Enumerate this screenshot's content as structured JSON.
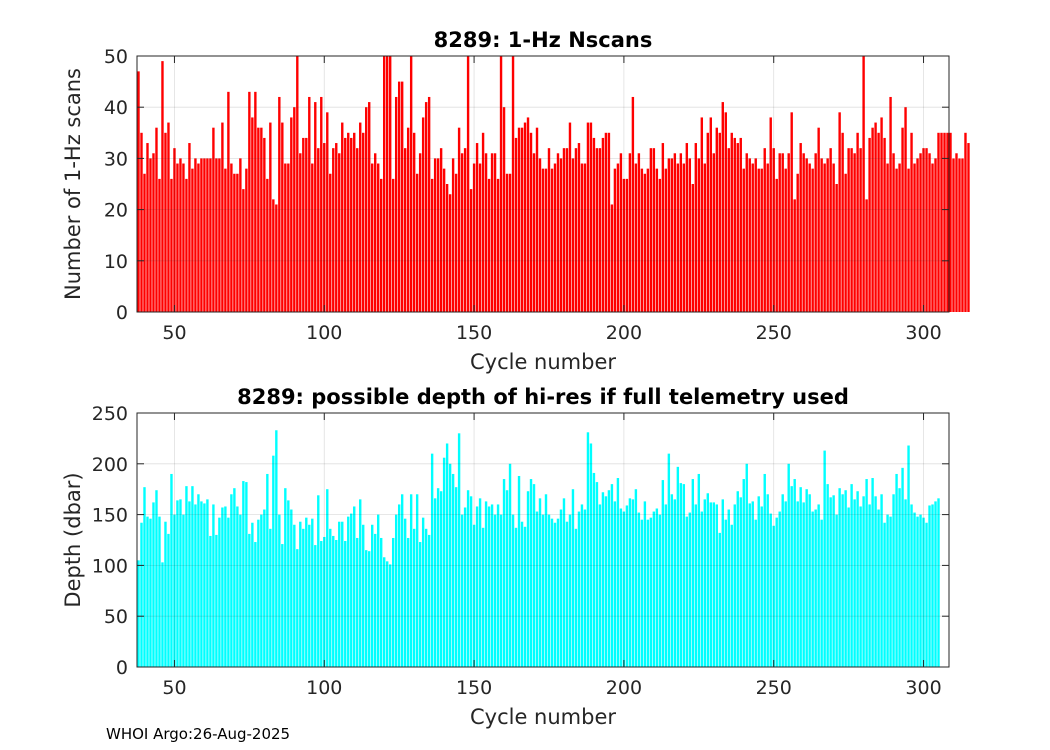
{
  "footer": "WHOI Argo:26-Aug-2025",
  "chart_data": [
    {
      "type": "bar",
      "title": "8289: 1-Hz Nscans",
      "xlabel": "Cycle number",
      "ylabel": "Number of 1-Hz scans",
      "xlim": [
        37.5,
        308.5
      ],
      "ylim": [
        0,
        50
      ],
      "xticks": [
        50,
        100,
        150,
        200,
        250,
        300
      ],
      "yticks": [
        0,
        10,
        20,
        30,
        40,
        50
      ],
      "grid": true,
      "color": "#ff0000",
      "x_start": 38,
      "values": [
        47,
        35,
        27,
        33,
        30,
        31,
        36,
        26,
        49,
        35,
        37,
        26,
        32,
        29,
        30,
        29,
        26,
        33,
        28,
        30,
        29,
        30,
        30,
        30,
        30,
        36,
        30,
        30,
        37,
        28,
        43,
        29,
        27,
        27,
        30,
        24,
        28,
        43,
        38,
        43,
        36,
        36,
        34,
        26,
        37,
        22,
        21,
        42,
        37,
        29,
        29,
        38,
        40,
        50,
        31,
        34,
        34,
        42,
        29,
        41,
        32,
        42,
        33,
        39,
        27,
        32,
        33,
        31,
        37,
        34,
        35,
        34,
        35,
        32,
        37,
        35,
        40,
        41,
        29,
        31,
        29,
        26,
        50,
        50,
        50,
        26,
        42,
        45,
        45,
        32,
        36,
        50,
        35,
        27,
        31,
        38,
        41,
        42,
        26,
        30,
        30,
        32,
        28,
        25,
        23,
        30,
        27,
        36,
        31,
        32,
        50,
        24,
        29,
        33,
        29,
        35,
        31,
        26,
        31,
        31,
        26,
        50,
        40,
        27,
        27,
        50,
        34,
        36,
        36,
        37,
        38,
        35,
        31,
        36,
        30,
        28,
        28,
        32,
        28,
        29,
        31,
        30,
        32,
        32,
        37,
        30,
        32,
        33,
        29,
        29,
        37,
        37,
        34,
        32,
        32,
        34,
        35,
        35,
        21,
        28,
        29,
        31,
        26,
        26,
        31,
        42,
        29,
        31,
        28,
        27,
        28,
        32,
        32,
        28,
        26,
        33,
        28,
        30,
        30,
        31,
        29,
        31,
        29,
        33,
        30,
        25,
        33,
        30,
        38,
        29,
        35,
        38,
        31,
        36,
        35,
        41,
        39,
        32,
        35,
        34,
        33,
        34,
        28,
        31,
        30,
        29,
        30,
        28,
        28,
        32,
        29,
        38,
        32,
        26,
        31,
        31,
        28,
        31,
        39,
        22,
        27,
        33,
        31,
        30,
        29,
        28,
        31,
        36,
        30,
        29,
        30,
        32,
        29,
        25,
        39,
        35,
        27,
        32,
        32,
        31,
        35,
        32,
        50,
        22,
        34,
        36,
        37,
        35,
        38,
        34,
        29,
        42,
        31,
        28,
        29,
        36,
        40,
        28,
        35,
        29,
        30,
        31,
        32,
        32,
        31,
        29,
        30,
        35,
        35,
        35,
        35,
        35,
        30,
        31,
        30,
        30,
        35,
        33
      ]
    },
    {
      "type": "bar",
      "title": "8289: possible depth of hi-res if full telemetry used",
      "xlabel": "Cycle number",
      "ylabel": "Depth (dbar)",
      "xlim": [
        37.5,
        308.5
      ],
      "ylim": [
        0,
        250
      ],
      "xticks": [
        50,
        100,
        150,
        200,
        250,
        300
      ],
      "yticks": [
        0,
        50,
        100,
        150,
        200,
        250
      ],
      "grid": true,
      "color": "#00ffff",
      "x_start": 38,
      "values": [
        105,
        142,
        177,
        148,
        146,
        162,
        174,
        148,
        103,
        143,
        131,
        190,
        150,
        164,
        165,
        150,
        178,
        163,
        178,
        160,
        170,
        163,
        161,
        165,
        129,
        160,
        130,
        147,
        157,
        158,
        147,
        170,
        176,
        158,
        150,
        183,
        182,
        131,
        142,
        123,
        145,
        150,
        155,
        190,
        136,
        208,
        233,
        150,
        121,
        176,
        164,
        155,
        140,
        116,
        143,
        136,
        147,
        140,
        146,
        120,
        169,
        124,
        128,
        175,
        136,
        129,
        125,
        143,
        143,
        124,
        148,
        151,
        158,
        127,
        165,
        140,
        115,
        114,
        140,
        131,
        150,
        127,
        108,
        104,
        101,
        127,
        150,
        160,
        170,
        146,
        127,
        170,
        136,
        170,
        123,
        147,
        136,
        130,
        210,
        166,
        176,
        173,
        206,
        220,
        200,
        190,
        177,
        230,
        150,
        157,
        174,
        168,
        140,
        158,
        166,
        137,
        163,
        158,
        160,
        150,
        160,
        150,
        185,
        174,
        200,
        150,
        137,
        188,
        143,
        138,
        173,
        185,
        180,
        153,
        166,
        150,
        170,
        150,
        146,
        142,
        146,
        155,
        166,
        143,
        150,
        175,
        136,
        153,
        160,
        155,
        231,
        220,
        191,
        182,
        160,
        172,
        168,
        174,
        180,
        163,
        186,
        156,
        153,
        159,
        166,
        165,
        175,
        152,
        145,
        163,
        145,
        147,
        153,
        156,
        150,
        184,
        160,
        210,
        170,
        165,
        197,
        181,
        180,
        148,
        152,
        185,
        160,
        190,
        153,
        165,
        171,
        162,
        162,
        160,
        132,
        165,
        145,
        155,
        140,
        160,
        173,
        167,
        185,
        200,
        161,
        163,
        145,
        168,
        158,
        190,
        170,
        151,
        139,
        147,
        153,
        170,
        163,
        200,
        178,
        185,
        163,
        177,
        162,
        175,
        170,
        153,
        155,
        160,
        145,
        213,
        180,
        167,
        169,
        150,
        176,
        170,
        174,
        157,
        180,
        165,
        173,
        158,
        168,
        185,
        160,
        186,
        168,
        155,
        170,
        142,
        150,
        148,
        170,
        190,
        176,
        196,
        165,
        218,
        160,
        152,
        148,
        150,
        147,
        142,
        159,
        160,
        163,
        166
      ]
    }
  ]
}
